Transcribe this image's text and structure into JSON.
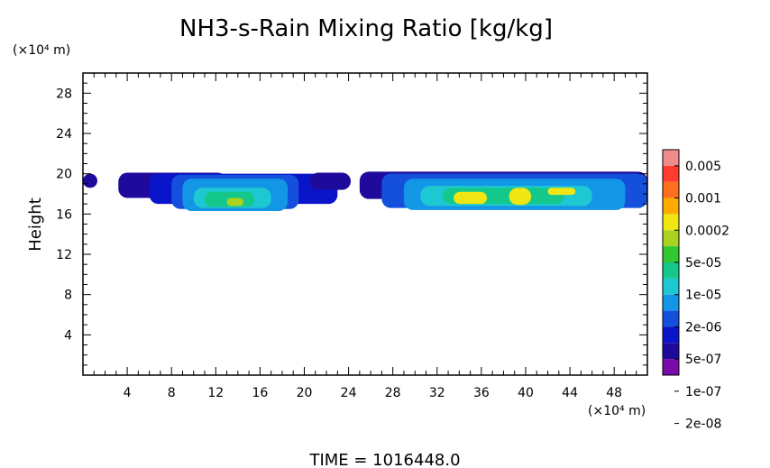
{
  "chart_data": {
    "type": "heatmap",
    "title": "NH3-s-Rain Mixing Ratio [kg/kg]",
    "ylabel": "Height",
    "x_unit": "(×10⁴ m)",
    "y_unit": "(×10⁴ m)",
    "xlim": [
      0,
      51
    ],
    "ylim": [
      0,
      30
    ],
    "x_ticks": [
      "4",
      "8",
      "12",
      "16",
      "20",
      "24",
      "28",
      "32",
      "36",
      "40",
      "44",
      "48"
    ],
    "y_ticks": [
      "4",
      "8",
      "12",
      "16",
      "20",
      "24",
      "28"
    ],
    "colorbar": {
      "labels": [
        "0.005",
        "0.001",
        "0.0002",
        "5e-05",
        "1e-05",
        "2e-06",
        "5e-07",
        "1e-07",
        "2e-08"
      ],
      "colors": [
        "#f08c8c",
        "#ff3c2d",
        "#ff6e1e",
        "#ffaa00",
        "#f0e614",
        "#aad21e",
        "#32c832",
        "#14c88c",
        "#1ec8d2",
        "#1496e6",
        "#1450dc",
        "#0a14c8",
        "#1e0a9b",
        "#780aaa"
      ]
    },
    "regions": [
      {
        "x": [
          0,
          1.3
        ],
        "y": [
          18.6,
          20.0
        ],
        "level": 1
      },
      {
        "x": [
          3.2,
          13.0
        ],
        "y": [
          17.6,
          20.1
        ],
        "level": 1
      },
      {
        "x": [
          6.0,
          23.0
        ],
        "y": [
          17.0,
          20.0
        ],
        "level": 2
      },
      {
        "x": [
          8.0,
          19.5
        ],
        "y": [
          16.5,
          19.9
        ],
        "level": 3
      },
      {
        "x": [
          9.0,
          18.5
        ],
        "y": [
          16.3,
          19.5
        ],
        "level": 4
      },
      {
        "x": [
          10.0,
          17.0
        ],
        "y": [
          16.6,
          18.6
        ],
        "level": 5
      },
      {
        "x": [
          11.0,
          15.5
        ],
        "y": [
          16.7,
          18.2
        ],
        "level": 6
      },
      {
        "x": [
          13.0,
          14.5
        ],
        "y": [
          16.8,
          17.6
        ],
        "level": 8
      },
      {
        "x": [
          20.5,
          24.2
        ],
        "y": [
          18.4,
          20.1
        ],
        "level": 1
      },
      {
        "x": [
          25.0,
          51.0
        ],
        "y": [
          17.5,
          20.2
        ],
        "level": 1
      },
      {
        "x": [
          27.0,
          51.0
        ],
        "y": [
          16.6,
          20.0
        ],
        "level": 3
      },
      {
        "x": [
          29.0,
          49.0
        ],
        "y": [
          16.4,
          19.5
        ],
        "level": 4
      },
      {
        "x": [
          30.5,
          46.0
        ],
        "y": [
          16.8,
          18.8
        ],
        "level": 5
      },
      {
        "x": [
          32.5,
          43.5
        ],
        "y": [
          17.0,
          18.6
        ],
        "level": 6
      },
      {
        "x": [
          33.5,
          36.5
        ],
        "y": [
          17.0,
          18.2
        ],
        "level": 9
      },
      {
        "x": [
          38.5,
          40.5
        ],
        "y": [
          16.9,
          18.6
        ],
        "level": 9
      },
      {
        "x": [
          42.0,
          44.5
        ],
        "y": [
          17.9,
          18.6
        ],
        "level": 9
      }
    ]
  },
  "footer": {
    "time": "TIME = 1016448.0"
  }
}
